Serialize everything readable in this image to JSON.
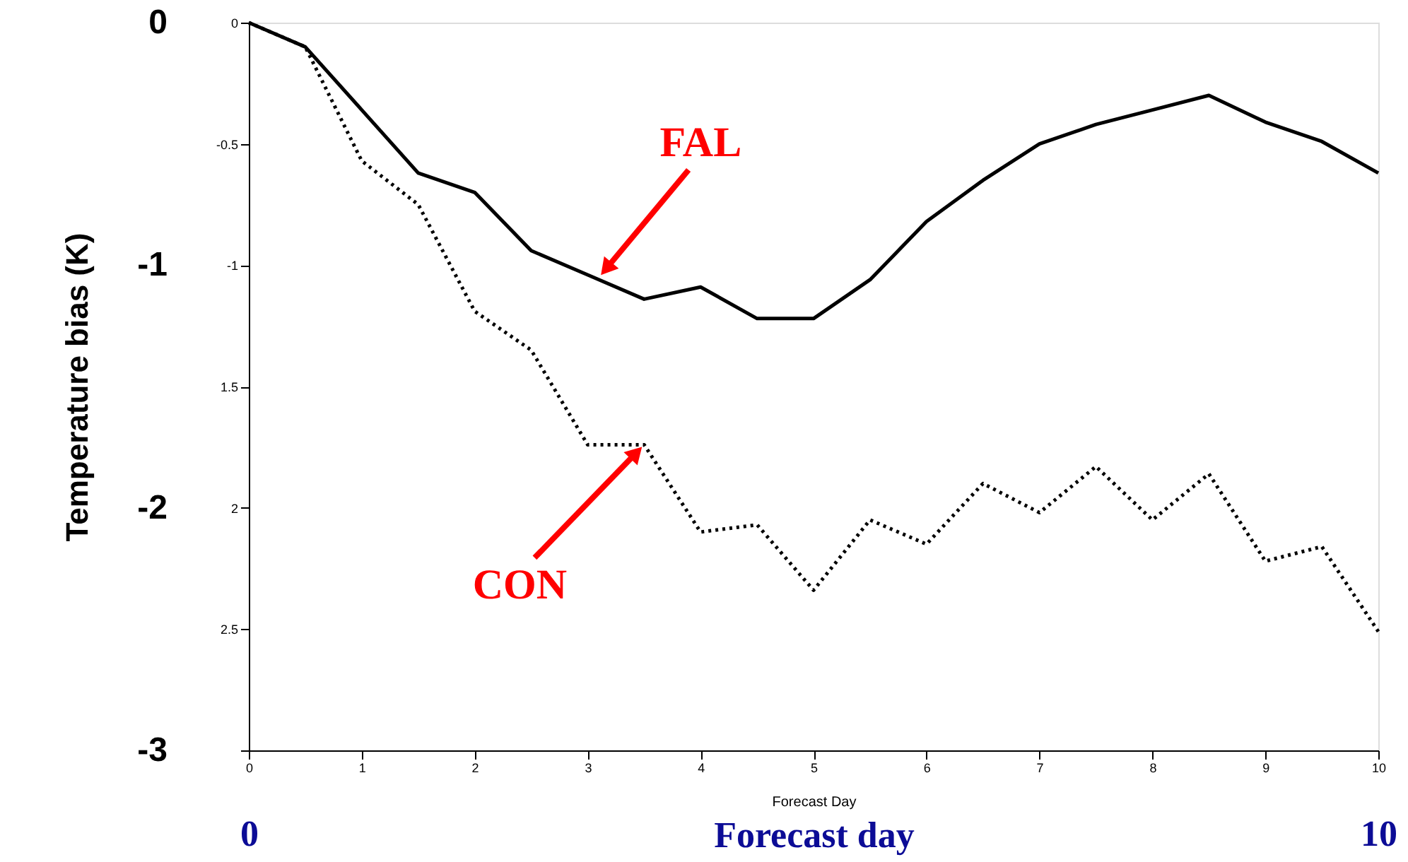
{
  "chart_data": {
    "type": "line",
    "ylabel": "Temperature bias (K)",
    "xlabel": "Forecast Day",
    "x2label": "Forecast day",
    "x": [
      0,
      0.5,
      1,
      1.5,
      2,
      2.5,
      3,
      3.5,
      4,
      4.5,
      5,
      5.5,
      6,
      6.5,
      7,
      7.5,
      8,
      8.5,
      9,
      9.5,
      10
    ],
    "series": [
      {
        "color": "#000000",
        "line_style": "solid",
        "values": [
          0,
          -0.1,
          -0.36,
          -0.62,
          -0.7,
          -0.94,
          -1.04,
          -1.14,
          -1.09,
          -1.22,
          -1.22,
          -1.06,
          -0.82,
          -0.65,
          -0.5,
          -0.42,
          -0.36,
          -0.3,
          -0.41,
          -0.49,
          -0.62
        ]
      },
      {
        "color": "#000000",
        "line_style": "dotted",
        "values": [
          0,
          -0.1,
          -0.57,
          -0.75,
          -1.19,
          -1.35,
          -1.74,
          -1.74,
          -2.1,
          -2.07,
          -2.34,
          -2.05,
          -2.15,
          -1.9,
          -2.02,
          -1.83,
          -2.05,
          -1.86,
          -2.22,
          -2.16,
          -2.51
        ]
      }
    ],
    "xlim": [
      0,
      10
    ],
    "xticks": [
      0,
      1,
      2,
      3,
      4,
      5,
      6,
      7,
      8,
      9,
      10
    ],
    "x2lim": [
      0,
      10
    ],
    "x2ticks": [
      0,
      10
    ],
    "ylim": [
      -3,
      0
    ],
    "yticks": [
      0,
      -1,
      -2,
      -3
    ],
    "y2lim": [
      -3,
      0
    ],
    "y2ticks": [
      0,
      -0.5,
      -1,
      {
        "value": -1.5,
        "label": "1.5"
      },
      {
        "value": -2,
        "label": "2"
      },
      {
        "value": -2.5,
        "label": "2.5"
      },
      {
        "value": -3,
        "label": null
      }
    ],
    "annotations": [
      {
        "text": "FAL",
        "x": 3.1,
        "y": -1.05
      },
      {
        "text": "CON",
        "x": 3.5,
        "y": -1.74
      }
    ],
    "grid": false,
    "legend": false,
    "marker": "none"
  }
}
